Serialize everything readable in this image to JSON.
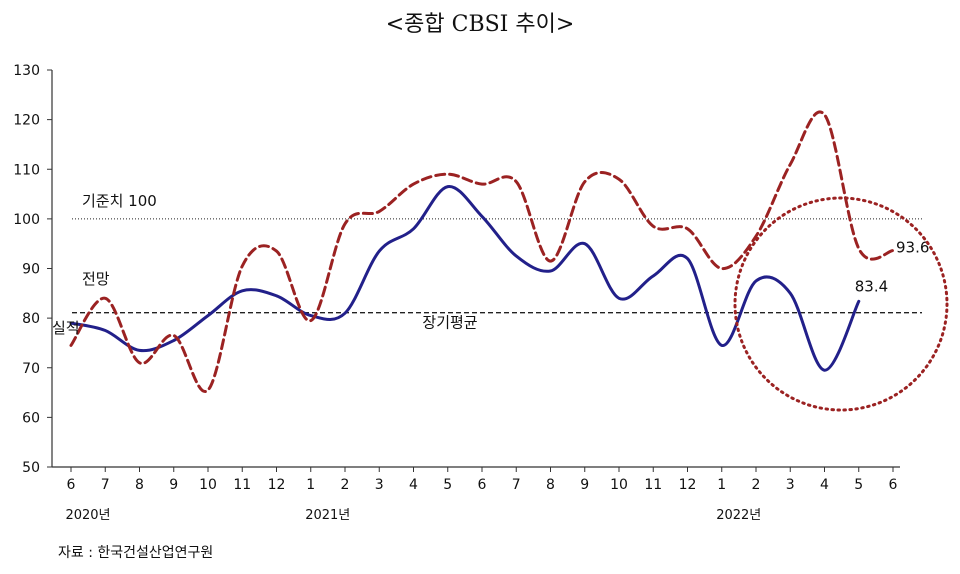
{
  "chart_data": {
    "type": "line",
    "title": "<종합 CBSI 추이>",
    "ylim": [
      50,
      130
    ],
    "yticks": [
      50,
      60,
      70,
      80,
      90,
      100,
      110,
      120,
      130
    ],
    "categories": [
      "6",
      "7",
      "8",
      "9",
      "10",
      "11",
      "12",
      "1",
      "2",
      "3",
      "4",
      "5",
      "6",
      "7",
      "8",
      "9",
      "10",
      "11",
      "12",
      "1",
      "2",
      "3",
      "4",
      "5",
      "6"
    ],
    "year_labels": [
      {
        "label": "2020년",
        "index": 0
      },
      {
        "label": "2021년",
        "index": 7
      },
      {
        "label": "2022년",
        "index": 19
      }
    ],
    "series": [
      {
        "name": "실적",
        "style": "solid",
        "color": "#22208a",
        "values": [
          79,
          77.5,
          73.5,
          75.5,
          80.5,
          85.5,
          84.5,
          80.5,
          81,
          93.5,
          98,
          106.5,
          100.5,
          92.5,
          89.5,
          95,
          84,
          88.5,
          92,
          74.5,
          87.5,
          85,
          69.5,
          83.4,
          null
        ]
      },
      {
        "name": "전망",
        "style": "dashed",
        "color": "#9b2222",
        "values": [
          74.5,
          84,
          71,
          76.5,
          65.5,
          90.5,
          93.5,
          79.5,
          99,
          101.5,
          107,
          109,
          107,
          107.5,
          91.5,
          107.5,
          108,
          98.5,
          98,
          90,
          96.5,
          111,
          121,
          94,
          93.6
        ]
      }
    ],
    "reference_lines": [
      {
        "label": "기준치 100",
        "value": 100,
        "style": "dotted"
      },
      {
        "label": "장기평균",
        "value": 81.1,
        "style": "dashed"
      }
    ],
    "annotations": {
      "last_actual": "83.4",
      "last_forecast": "93.6"
    },
    "highlight": {
      "shape": "dotted-circle",
      "color": "#9b2222"
    }
  },
  "source": "자료 : 한국건설산업연구원"
}
